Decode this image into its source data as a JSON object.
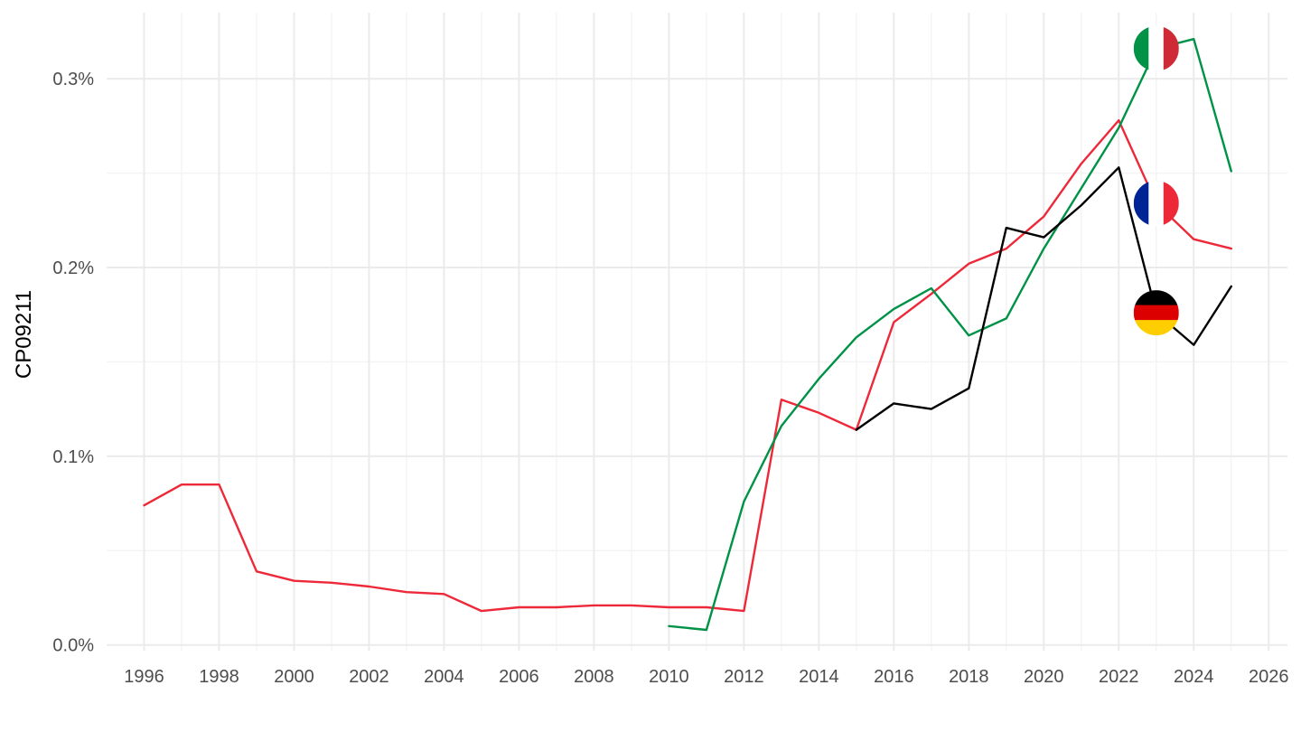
{
  "chart_data": {
    "type": "line",
    "ylabel": "CP09211",
    "xlim": [
      1995,
      2026.5
    ],
    "ylim": [
      -3e-05,
      0.00335
    ],
    "x_ticks": [
      1996,
      1998,
      2000,
      2002,
      2004,
      2006,
      2008,
      2010,
      2012,
      2014,
      2016,
      2018,
      2020,
      2022,
      2024,
      2026
    ],
    "x_tick_labels": [
      "1996",
      "1998",
      "2000",
      "2002",
      "2004",
      "2006",
      "2008",
      "2010",
      "2012",
      "2014",
      "2016",
      "2018",
      "2020",
      "2022",
      "2024",
      "2026"
    ],
    "y_ticks": [
      0,
      0.001,
      0.002,
      0.003
    ],
    "y_tick_labels": [
      "0.0%",
      "0.1%",
      "0.2%",
      "0.3%"
    ],
    "grid": true,
    "legend": "flag markers at line ends",
    "series": [
      {
        "country": "France",
        "color": "#ED2939",
        "flag": "france-flag-icon",
        "marker_x": 2023,
        "x": [
          1996,
          1997,
          1998,
          1999,
          2000,
          2001,
          2002,
          2003,
          2004,
          2005,
          2006,
          2007,
          2008,
          2009,
          2010,
          2011,
          2012,
          2013,
          2014,
          2015,
          2016,
          2017,
          2018,
          2019,
          2020,
          2021,
          2022,
          2023,
          2024,
          2025
        ],
        "values": [
          0.00074,
          0.00085,
          0.00085,
          0.00039,
          0.00034,
          0.00033,
          0.00031,
          0.00028,
          0.00027,
          0.00018,
          0.0002,
          0.0002,
          0.00021,
          0.00021,
          0.0002,
          0.0002,
          0.00018,
          0.0013,
          0.00123,
          0.00114,
          0.00171,
          0.00186,
          0.00202,
          0.0021,
          0.00227,
          0.00255,
          0.00278,
          0.00234,
          0.00215,
          0.0021
        ]
      },
      {
        "country": "Italy",
        "color": "#009246",
        "flag": "italy-flag-icon",
        "marker_x": 2023,
        "x": [
          2010,
          2011,
          2012,
          2013,
          2014,
          2015,
          2016,
          2017,
          2018,
          2019,
          2020,
          2021,
          2022,
          2023,
          2024,
          2025
        ],
        "values": [
          0.0001,
          8e-05,
          0.00076,
          0.00116,
          0.00141,
          0.00163,
          0.00178,
          0.00189,
          0.00164,
          0.00173,
          0.0021,
          0.00242,
          0.00274,
          0.00316,
          0.00321,
          0.00251
        ]
      },
      {
        "country": "Germany",
        "color": "#000000",
        "flag": "germany-flag-icon",
        "marker_x": 2023,
        "x": [
          2015,
          2016,
          2017,
          2018,
          2019,
          2020,
          2021,
          2022,
          2023,
          2024,
          2025
        ],
        "values": [
          0.00114,
          0.00128,
          0.00125,
          0.00136,
          0.00221,
          0.00216,
          0.00233,
          0.00253,
          0.00176,
          0.00159,
          0.0019
        ]
      }
    ]
  }
}
